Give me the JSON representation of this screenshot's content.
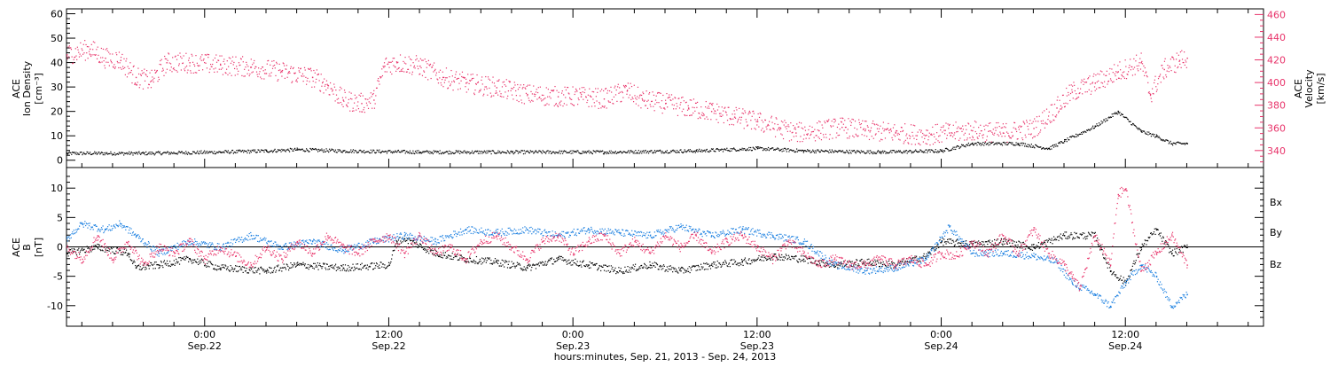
{
  "colors": {
    "density": "#000000",
    "velocity": "#e8336a",
    "bx": "#000000",
    "by": "#1a7fe0",
    "bz": "#e8336a"
  },
  "xaxis": {
    "title": "hours:minutes, Sep. 21, 2013 - Sep. 24, 2013",
    "ticks": [
      {
        "time": "0:00",
        "date": "Sep.22",
        "h": 24
      },
      {
        "time": "12:00",
        "date": "Sep.22",
        "h": 36
      },
      {
        "time": "0:00",
        "date": "Sep.23",
        "h": 48
      },
      {
        "time": "12:00",
        "date": "Sep.23",
        "h": 60
      },
      {
        "time": "0:00",
        "date": "Sep.24",
        "h": 72
      },
      {
        "time": "12:00",
        "date": "Sep.24",
        "h": 84
      }
    ],
    "xlim_hours": [
      15,
      93
    ]
  },
  "chart_data": [
    {
      "type": "scatter",
      "panel": "top",
      "ylabel_lines": [
        "ACE",
        "Ion Density",
        "[cm⁻³]"
      ],
      "y2label_lines": [
        "ACE",
        "Velocity",
        "[km/s]"
      ],
      "ylim": [
        -3,
        62
      ],
      "yticks": [
        0,
        10,
        20,
        30,
        40,
        50,
        60
      ],
      "y2lim": [
        325,
        465
      ],
      "y2ticks": [
        340,
        360,
        380,
        400,
        420,
        440,
        460
      ],
      "series": [
        {
          "key": "density",
          "axis": "left",
          "points": [
            [
              15,
              3
            ],
            [
              20,
              3
            ],
            [
              25,
              3.5
            ],
            [
              28,
              4
            ],
            [
              30,
              4.5
            ],
            [
              33,
              4
            ],
            [
              38,
              3.5
            ],
            [
              44,
              3.5
            ],
            [
              50,
              3.5
            ],
            [
              56,
              4
            ],
            [
              60,
              5
            ],
            [
              63,
              4
            ],
            [
              68,
              3.5
            ],
            [
              72,
              4
            ],
            [
              74,
              7
            ],
            [
              77,
              7
            ],
            [
              79,
              5
            ],
            [
              80,
              8
            ],
            [
              82,
              14
            ],
            [
              83.5,
              20
            ],
            [
              85,
              12
            ],
            [
              86,
              10
            ],
            [
              87,
              7
            ],
            [
              88,
              7
            ]
          ]
        },
        {
          "key": "velocity",
          "axis": "right",
          "points": [
            [
              15,
              425
            ],
            [
              16.5,
              430
            ],
            [
              17.5,
              422
            ],
            [
              18.5,
              420
            ],
            [
              19.5,
              405
            ],
            [
              20.5,
              402
            ],
            [
              21.5,
              418
            ],
            [
              23,
              418
            ],
            [
              25,
              416
            ],
            [
              27,
              414
            ],
            [
              29,
              410
            ],
            [
              31,
              405
            ],
            [
              32,
              398
            ],
            [
              33,
              385
            ],
            [
              34.2,
              382
            ],
            [
              35,
              385
            ],
            [
              35.7,
              415
            ],
            [
              36.5,
              418
            ],
            [
              38,
              415
            ],
            [
              39.5,
              405
            ],
            [
              41,
              400
            ],
            [
              43,
              396
            ],
            [
              45,
              390
            ],
            [
              47,
              388
            ],
            [
              48.5,
              388
            ],
            [
              50,
              386
            ],
            [
              51.5,
              393
            ],
            [
              52.5,
              385
            ],
            [
              54,
              382
            ],
            [
              55.5,
              378
            ],
            [
              57,
              375
            ],
            [
              58.5,
              370
            ],
            [
              60,
              366
            ],
            [
              61.5,
              360
            ],
            [
              62.5,
              356
            ],
            [
              64,
              358
            ],
            [
              65.5,
              361
            ],
            [
              67,
              358
            ],
            [
              69,
              356
            ],
            [
              71,
              354
            ],
            [
              72.5,
              356
            ],
            [
              74,
              358
            ],
            [
              76,
              356
            ],
            [
              78,
              360
            ],
            [
              79.5,
              378
            ],
            [
              80.5,
              392
            ],
            [
              82,
              400
            ],
            [
              83.5,
              410
            ],
            [
              85,
              418
            ],
            [
              85.6,
              390
            ],
            [
              86.5,
              412
            ],
            [
              87.5,
              420
            ],
            [
              88,
              422
            ]
          ]
        }
      ]
    },
    {
      "type": "scatter",
      "panel": "bottom",
      "ylabel_lines": [
        "ACE",
        "B",
        "[nT]"
      ],
      "ylim": [
        -13.5,
        13.5
      ],
      "yticks": [
        -10,
        -5,
        0,
        5,
        10
      ],
      "legend": [
        "Bx",
        "By",
        "Bz"
      ],
      "series": [
        {
          "key": "bx",
          "name": "Bx",
          "points": [
            [
              15,
              -1
            ],
            [
              17,
              0
            ],
            [
              19,
              -1
            ],
            [
              19.5,
              -3.5
            ],
            [
              21,
              -3
            ],
            [
              23,
              -2
            ],
            [
              25,
              -3.5
            ],
            [
              28,
              -4
            ],
            [
              30,
              -3
            ],
            [
              33,
              -3.5
            ],
            [
              36,
              -3
            ],
            [
              36.5,
              1
            ],
            [
              37,
              1.5
            ],
            [
              39,
              -1
            ],
            [
              41,
              -2
            ],
            [
              43,
              -2.5
            ],
            [
              45,
              -3.5
            ],
            [
              47,
              -2
            ],
            [
              49,
              -3
            ],
            [
              51,
              -4
            ],
            [
              53,
              -3
            ],
            [
              55,
              -4
            ],
            [
              57,
              -3
            ],
            [
              59,
              -2.5
            ],
            [
              61,
              -1.5
            ],
            [
              63,
              -2
            ],
            [
              65,
              -3
            ],
            [
              67,
              -2.5
            ],
            [
              69,
              -3
            ],
            [
              71,
              -1.5
            ],
            [
              72,
              1
            ],
            [
              74,
              0.5
            ],
            [
              76,
              1
            ],
            [
              78,
              0
            ],
            [
              80,
              2
            ],
            [
              82,
              2
            ],
            [
              83,
              -4
            ],
            [
              84,
              -6
            ],
            [
              85,
              0
            ],
            [
              86,
              3
            ],
            [
              87,
              -1
            ],
            [
              88,
              0
            ]
          ]
        },
        {
          "key": "by",
          "name": "By",
          "points": [
            [
              15,
              1.5
            ],
            [
              16,
              4
            ],
            [
              17.5,
              3
            ],
            [
              18.5,
              4
            ],
            [
              19.5,
              2
            ],
            [
              21,
              -1
            ],
            [
              23,
              1
            ],
            [
              25,
              0
            ],
            [
              27,
              2
            ],
            [
              29,
              0
            ],
            [
              31,
              1
            ],
            [
              33,
              -0.5
            ],
            [
              35,
              1
            ],
            [
              37,
              2
            ],
            [
              39,
              1
            ],
            [
              41,
              3
            ],
            [
              43,
              2.5
            ],
            [
              45,
              3
            ],
            [
              47,
              2
            ],
            [
              49,
              3
            ],
            [
              51,
              2.5
            ],
            [
              53,
              2
            ],
            [
              55,
              3.5
            ],
            [
              57,
              2
            ],
            [
              59,
              3
            ],
            [
              61,
              2
            ],
            [
              63,
              1
            ],
            [
              65,
              -3
            ],
            [
              67,
              -4
            ],
            [
              69,
              -3.5
            ],
            [
              71,
              -2
            ],
            [
              72.5,
              3.5
            ],
            [
              74,
              -1
            ],
            [
              76,
              -1
            ],
            [
              78,
              -1.5
            ],
            [
              79.5,
              -2.5
            ],
            [
              80.5,
              -6
            ],
            [
              82,
              -8
            ],
            [
              83,
              -10
            ],
            [
              84,
              -6
            ],
            [
              85,
              -3
            ],
            [
              86,
              -5
            ],
            [
              87,
              -10
            ],
            [
              88,
              -8
            ]
          ]
        },
        {
          "key": "bz",
          "name": "Bz",
          "points": [
            [
              15,
              0
            ],
            [
              16,
              -2
            ],
            [
              17,
              2
            ],
            [
              18,
              -2
            ],
            [
              19,
              1
            ],
            [
              20,
              -3
            ],
            [
              21,
              0
            ],
            [
              22,
              -1
            ],
            [
              23,
              1
            ],
            [
              24,
              -2
            ],
            [
              25,
              0
            ],
            [
              26,
              -1.5
            ],
            [
              27,
              -3
            ],
            [
              28,
              0
            ],
            [
              29,
              -2
            ],
            [
              30,
              1
            ],
            [
              31,
              -1
            ],
            [
              32,
              2
            ],
            [
              33,
              0
            ],
            [
              34,
              -1
            ],
            [
              35,
              1
            ],
            [
              36,
              2
            ],
            [
              37,
              -1
            ],
            [
              38,
              2
            ],
            [
              39,
              -1
            ],
            [
              40,
              0
            ],
            [
              41,
              -2
            ],
            [
              42,
              1
            ],
            [
              43,
              2
            ],
            [
              44,
              0
            ],
            [
              45,
              -2
            ],
            [
              46,
              1
            ],
            [
              47,
              2
            ],
            [
              48,
              -1
            ],
            [
              49,
              1
            ],
            [
              50,
              2
            ],
            [
              51,
              -1
            ],
            [
              52,
              1
            ],
            [
              53,
              -1
            ],
            [
              54,
              2
            ],
            [
              55,
              0
            ],
            [
              56,
              2
            ],
            [
              57,
              -1
            ],
            [
              58,
              1
            ],
            [
              59,
              2
            ],
            [
              60,
              0
            ],
            [
              61,
              -2
            ],
            [
              62,
              1
            ],
            [
              63,
              -1
            ],
            [
              64,
              -3
            ],
            [
              65,
              -2
            ],
            [
              66,
              -3
            ],
            [
              67,
              -3
            ],
            [
              68,
              -2
            ],
            [
              69,
              -3
            ],
            [
              70,
              -2
            ],
            [
              71,
              -3
            ],
            [
              72,
              -1
            ],
            [
              73,
              -1.5
            ],
            [
              74,
              1
            ],
            [
              75,
              -1
            ],
            [
              76,
              2
            ],
            [
              77,
              -1
            ],
            [
              78,
              3
            ],
            [
              79,
              -1
            ],
            [
              80,
              -3
            ],
            [
              80.5,
              -5
            ],
            [
              81,
              -7
            ],
            [
              82,
              2
            ],
            [
              83,
              -3
            ],
            [
              83.5,
              9
            ],
            [
              84,
              10
            ],
            [
              85,
              -4
            ],
            [
              86,
              -1
            ],
            [
              87,
              2
            ],
            [
              88,
              -3
            ]
          ]
        }
      ]
    }
  ]
}
